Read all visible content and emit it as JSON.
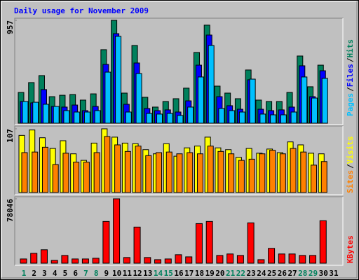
{
  "chart_data": [
    {
      "type": "bar",
      "title": "Daily usage for November 2009",
      "legend_separator": "/",
      "ylim": [
        0,
        957
      ],
      "yticks": [
        957
      ],
      "series": [
        {
          "name": "Hits",
          "color": "#00805c",
          "values": [
            286,
            378,
            443,
            247,
            260,
            267,
            215,
            273,
            684,
            957,
            280,
            723,
            241,
            150,
            202,
            228,
            326,
            658,
            912,
            345,
            280,
            228,
            495,
            215,
            202,
            202,
            286,
            625,
            339,
            540,
            null
          ]
        },
        {
          "name": "Files",
          "color": "#0000ff",
          "values": [
            202,
            189,
            313,
            156,
            150,
            169,
            117,
            156,
            547,
            833,
            176,
            560,
            137,
            117,
            124,
            104,
            208,
            540,
            820,
            247,
            163,
            130,
            404,
            130,
            117,
            124,
            150,
            534,
            247,
            488,
            null
          ]
        },
        {
          "name": "Pages",
          "color": "#00c0ff",
          "values": [
            202,
            195,
            176,
            156,
            117,
            104,
            104,
            117,
            475,
            808,
            104,
            462,
            91,
            85,
            91,
            72,
            150,
            430,
            723,
            137,
            117,
            104,
            410,
            85,
            78,
            78,
            104,
            430,
            234,
            417,
            null
          ]
        }
      ]
    },
    {
      "type": "bar",
      "legend_separator": "/",
      "ylim": [
        0,
        107
      ],
      "yticks": [
        107
      ],
      "series": [
        {
          "name": "Visits",
          "color": "#ffff00",
          "values": [
            96,
            105,
            92,
            74,
            87,
            65,
            54,
            83,
            107,
            93,
            83,
            82,
            72,
            65,
            82,
            61,
            75,
            78,
            93,
            75,
            72,
            59,
            74,
            66,
            73,
            67,
            85,
            80,
            66,
            65,
            null
          ]
        },
        {
          "name": "Sites",
          "color": "#ff8000",
          "values": [
            67,
            68,
            76,
            47,
            66,
            51,
            51,
            67,
            94,
            80,
            69,
            78,
            62,
            67,
            68,
            65,
            67,
            65,
            78,
            69,
            65,
            54,
            56,
            65,
            71,
            65,
            74,
            68,
            46,
            52,
            null
          ]
        }
      ]
    },
    {
      "type": "bar",
      "ylim": [
        0,
        78046
      ],
      "yticks": [
        78046
      ],
      "series": [
        {
          "name": "KBytes",
          "color": "#ff0000",
          "values": [
            5150,
            12000,
            16300,
            3400,
            9400,
            5150,
            5150,
            6000,
            50600,
            78046,
            6900,
            43800,
            6900,
            4300,
            5150,
            10300,
            7700,
            48000,
            50600,
            9400,
            11200,
            9400,
            48900,
            4300,
            18000,
            11200,
            11200,
            9400,
            9400,
            51500,
            null
          ]
        }
      ],
      "categories": [
        "1",
        "2",
        "3",
        "4",
        "5",
        "6",
        "7",
        "8",
        "9",
        "10",
        "11",
        "12",
        "13",
        "14",
        "15",
        "16",
        "17",
        "18",
        "19",
        "20",
        "21",
        "22",
        "23",
        "24",
        "25",
        "26",
        "27",
        "28",
        "29",
        "30",
        "31"
      ],
      "weekend": [
        true,
        false,
        false,
        false,
        false,
        false,
        true,
        true,
        false,
        false,
        false,
        false,
        false,
        true,
        true,
        false,
        false,
        false,
        false,
        false,
        true,
        true,
        false,
        false,
        false,
        false,
        false,
        true,
        true,
        false,
        false
      ],
      "label_color": "#000000",
      "weekend_label_color": "#00805c"
    }
  ]
}
